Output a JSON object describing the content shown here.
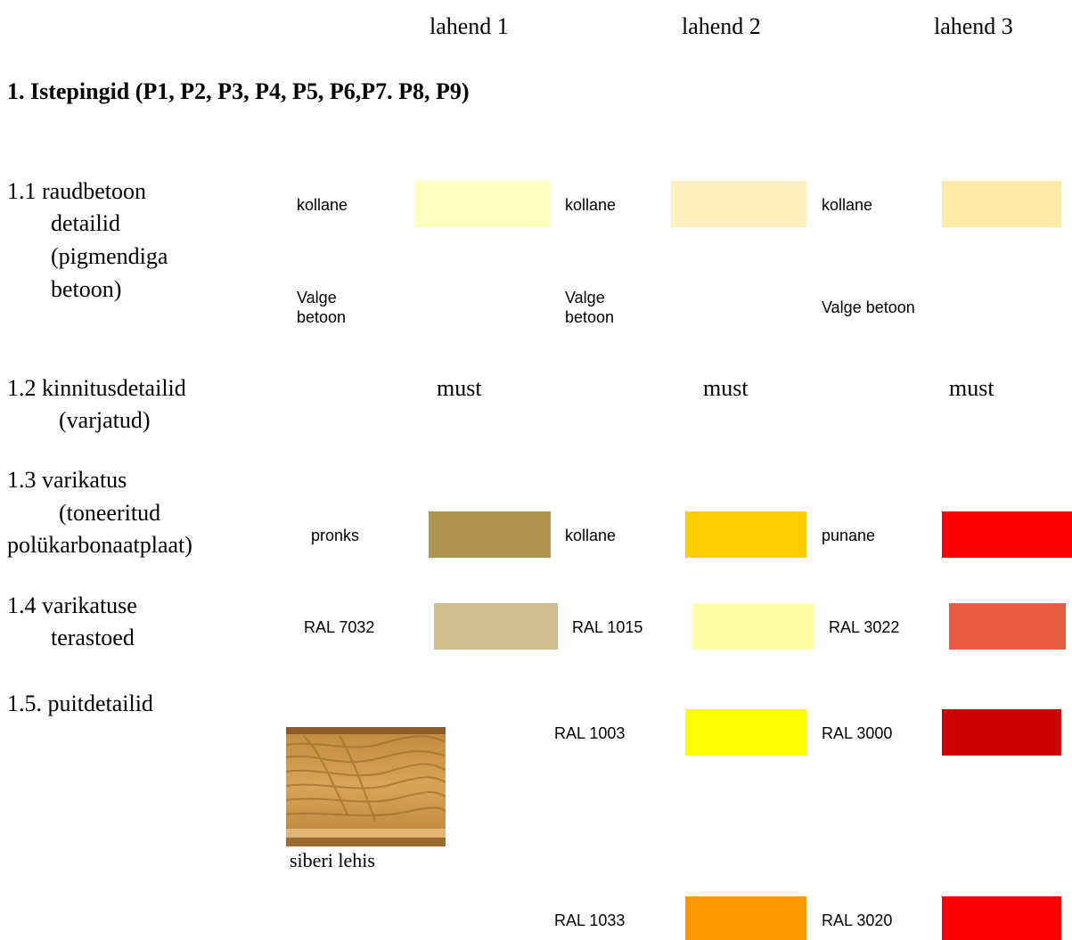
{
  "columns": [
    "lahend  1",
    "lahend  2",
    "lahend  3"
  ],
  "section_title": "1. Istepingid  (P1, P2, P3, P4, P5, P6,P7. P8, P9)",
  "rows": {
    "r11": {
      "label_lines": [
        "1.1  raudbetoon",
        "detailid",
        "(pigmendiga",
        "betoon)"
      ],
      "l1_color_label": "kollane",
      "l1_color": "#FFFFC0",
      "l2_color_label": "kollane",
      "l2_color": "#FFF0C0",
      "l3_color_label": "kollane",
      "l3_color": "#FFEBA8",
      "l1_alt_lines": [
        "Valge",
        "betoon"
      ],
      "l2_alt_lines": [
        "Valge",
        "betoon"
      ],
      "l3_alt": "Valge betoon"
    },
    "r12": {
      "label_lines": [
        "1.2  kinnitusdetailid",
        "(varjatud)"
      ],
      "l1": "must",
      "l2": "must",
      "l3": "must"
    },
    "r13": {
      "label_lines": [
        "1.3  varikatus",
        "(toneeritud",
        "polükarbonaatplaat)"
      ],
      "l1_label": "pronks",
      "l1_color": "#B09550",
      "l2_label": "kollane",
      "l2_color": "#FFCC00",
      "l3_label": "punane",
      "l3_color": "#FF0000"
    },
    "r14": {
      "label_lines": [
        "1.4 varikatuse",
        "terastoed"
      ],
      "l1_label": "RAL 7032",
      "l1_color": "#D0BE90",
      "l2_label": "RAL 1015",
      "l2_color": "#FFFFA8",
      "l3_label": "RAL 3022",
      "l3_color": "#E85A42"
    },
    "r15": {
      "label": "1.5. puitdetailid",
      "wood_caption": "siberi lehis",
      "a2_label": "RAL 1003",
      "a2_color": "#FFFF00",
      "a3_label": "RAL 3000",
      "a3_color": "#CC0000",
      "b2_label": "RAL 1033",
      "b2_color": "#FF9900",
      "b3_label": "RAL 3020",
      "b3_color": "#FF0000"
    }
  }
}
